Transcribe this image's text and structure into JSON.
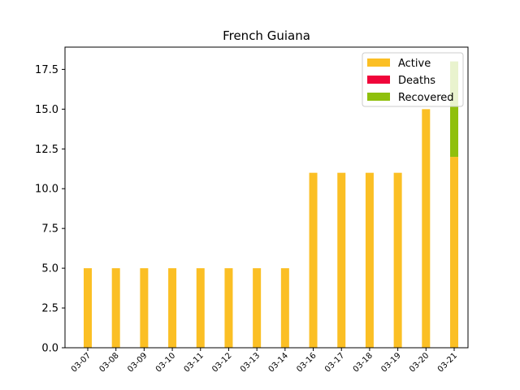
{
  "chart_data": {
    "type": "bar",
    "title": "French Guiana",
    "xlabel": "",
    "ylabel": "",
    "categories": [
      "03-07",
      "03-08",
      "03-09",
      "03-10",
      "03-11",
      "03-12",
      "03-13",
      "03-14",
      "03-16",
      "03-17",
      "03-18",
      "03-19",
      "03-20",
      "03-21"
    ],
    "series": [
      {
        "name": "Active",
        "color": "#fbbf24",
        "values": [
          5,
          5,
          5,
          5,
          5,
          5,
          5,
          5,
          11,
          11,
          11,
          11,
          15,
          12
        ]
      },
      {
        "name": "Deaths",
        "color": "#f0053a",
        "values": [
          0,
          0,
          0,
          0,
          0,
          0,
          0,
          0,
          0,
          0,
          0,
          0,
          0,
          0
        ]
      },
      {
        "name": "Recovered",
        "color": "#8fc00c",
        "values": [
          0,
          0,
          0,
          0,
          0,
          0,
          0,
          0,
          0,
          0,
          0,
          0,
          0,
          6
        ]
      }
    ],
    "stacked": true,
    "ylim": [
      0,
      18.9
    ],
    "yticks": [
      "0.0",
      "2.5",
      "5.0",
      "7.5",
      "10.0",
      "12.5",
      "15.0",
      "17.5"
    ],
    "ytick_values": [
      0,
      2.5,
      5,
      7.5,
      10,
      12.5,
      15,
      17.5
    ],
    "legend_position": "top-right",
    "grid": false
  }
}
